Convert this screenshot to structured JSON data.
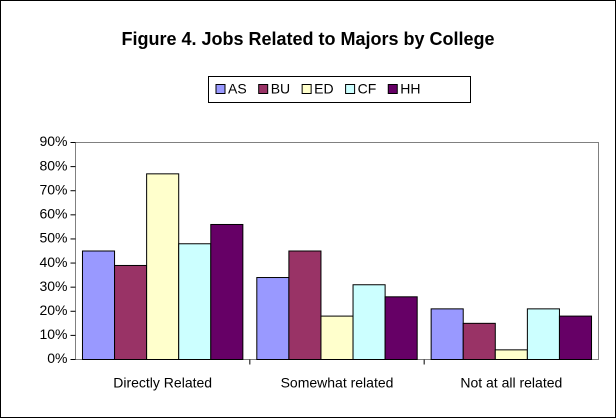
{
  "chart_data": {
    "type": "bar",
    "title": "Figure 4. Jobs Related to Majors by College",
    "categories": [
      "Directly Related",
      "Somewhat related",
      "Not at all related"
    ],
    "series": [
      {
        "name": "AS",
        "color": "#9999ff",
        "values": [
          45,
          34,
          21
        ]
      },
      {
        "name": "BU",
        "color": "#993366",
        "values": [
          39,
          45,
          15
        ]
      },
      {
        "name": "ED",
        "color": "#ffffcc",
        "values": [
          77,
          18,
          4
        ]
      },
      {
        "name": "CF",
        "color": "#ccffff",
        "values": [
          48,
          31,
          21
        ]
      },
      {
        "name": "HH",
        "color": "#660066",
        "values": [
          56,
          26,
          18
        ]
      }
    ],
    "ylim": [
      0,
      90
    ],
    "yticks": [
      {
        "value": 0,
        "label": "0%"
      },
      {
        "value": 10,
        "label": "10%"
      },
      {
        "value": 20,
        "label": "20%"
      },
      {
        "value": 30,
        "label": "30%"
      },
      {
        "value": 40,
        "label": "40%"
      },
      {
        "value": 50,
        "label": "50%"
      },
      {
        "value": 60,
        "label": "60%"
      },
      {
        "value": 70,
        "label": "70%"
      },
      {
        "value": 80,
        "label": "80%"
      },
      {
        "value": 90,
        "label": "90%"
      }
    ],
    "grid": false,
    "legend": "top"
  }
}
